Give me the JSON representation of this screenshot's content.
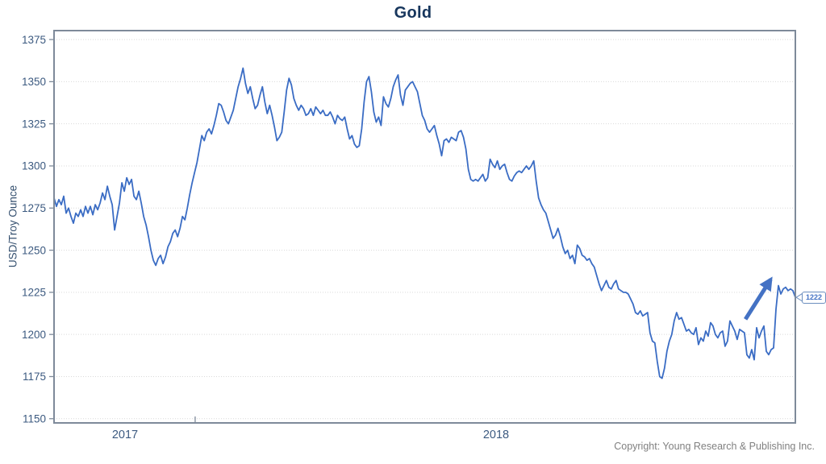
{
  "title": "Gold",
  "footer": {
    "copyright": "Copyright: Young Research & Publishing Inc."
  },
  "y_axis": {
    "label": "USD/Troy Ounce",
    "ticks": [
      1375,
      1350,
      1325,
      1300,
      1275,
      1250,
      1225,
      1200,
      1175,
      1150
    ]
  },
  "x_axis": {
    "labels": [
      {
        "text": "2017",
        "t": 2017.0
      },
      {
        "text": "2018",
        "t": 2018.0
      }
    ],
    "minor_tick_t": 2017.189
  },
  "annotation": {
    "last_price_label": "1222",
    "arrow": {
      "from": {
        "t": 2018.672,
        "price": 1209
      },
      "to": {
        "t": 2018.753,
        "price": 1235
      }
    }
  },
  "colors": {
    "line": "#3A6CC4",
    "arrow": "#4472C4",
    "frame": "#7E8A9A",
    "grid": "#D9D9D9",
    "title": "#17365D",
    "axis_text": "#3C5A80",
    "callout": "#4472C4",
    "copyright": "#808080"
  },
  "chart_data": {
    "type": "line",
    "title": "Gold",
    "series_name": "Gold spot price",
    "ylabel": "USD/Troy Ounce",
    "unit": "USD per troy ounce",
    "grid": "horizontal-dotted",
    "legend": "none",
    "x_start_decimal_year": 2016.8087,
    "x_step_decimal_year": 0.0065288,
    "xlim": [
      2016.8087,
      2018.8065
    ],
    "ylim": [
      1147.5,
      1380.3
    ],
    "last_value": 1222,
    "values": [
      1281,
      1276,
      1280,
      1277,
      1282,
      1272,
      1275,
      1270,
      1266,
      1272,
      1270,
      1274,
      1270,
      1276,
      1272,
      1276,
      1271,
      1277,
      1274,
      1278,
      1284,
      1280,
      1288,
      1282,
      1277,
      1262,
      1270,
      1278,
      1290,
      1285,
      1293,
      1289,
      1292,
      1282,
      1280,
      1285,
      1278,
      1270,
      1265,
      1258,
      1250,
      1244,
      1241,
      1245,
      1247,
      1242,
      1246,
      1252,
      1255,
      1260,
      1262,
      1258,
      1263,
      1270,
      1268,
      1275,
      1283,
      1290,
      1296,
      1302,
      1310,
      1318,
      1315,
      1320,
      1322,
      1319,
      1324,
      1330,
      1337,
      1336,
      1332,
      1327,
      1325,
      1329,
      1333,
      1340,
      1347,
      1352,
      1358,
      1349,
      1343,
      1347,
      1340,
      1334,
      1336,
      1342,
      1347,
      1338,
      1331,
      1336,
      1330,
      1323,
      1315,
      1317,
      1320,
      1332,
      1345,
      1352,
      1348,
      1340,
      1336,
      1333,
      1336,
      1334,
      1330,
      1331,
      1334,
      1330,
      1335,
      1333,
      1331,
      1333,
      1330,
      1330,
      1332,
      1329,
      1325,
      1330,
      1328,
      1327,
      1329,
      1322,
      1316,
      1318,
      1313,
      1311,
      1312,
      1322,
      1338,
      1350,
      1353,
      1344,
      1332,
      1326,
      1329,
      1324,
      1341,
      1337,
      1335,
      1340,
      1347,
      1351,
      1354,
      1342,
      1336,
      1345,
      1347,
      1349,
      1350,
      1347,
      1344,
      1337,
      1330,
      1327,
      1322,
      1320,
      1322,
      1324,
      1318,
      1313,
      1306,
      1315,
      1316,
      1314,
      1317,
      1316,
      1315,
      1320,
      1321,
      1317,
      1310,
      1298,
      1292,
      1291,
      1292,
      1291,
      1293,
      1295,
      1291,
      1293,
      1304,
      1301,
      1299,
      1303,
      1298,
      1300,
      1301,
      1296,
      1292,
      1291,
      1294,
      1296,
      1297,
      1296,
      1298,
      1300,
      1298,
      1300,
      1303,
      1291,
      1281,
      1277,
      1274,
      1272,
      1267,
      1262,
      1257,
      1259,
      1263,
      1258,
      1252,
      1248,
      1250,
      1245,
      1247,
      1242,
      1253,
      1251,
      1247,
      1246,
      1244,
      1245,
      1242,
      1240,
      1235,
      1230,
      1226,
      1229,
      1232,
      1228,
      1227,
      1230,
      1232,
      1227,
      1226,
      1225,
      1225,
      1224,
      1221,
      1218,
      1213,
      1212,
      1214,
      1211,
      1212,
      1213,
      1201,
      1196,
      1195,
      1184,
      1175,
      1174,
      1180,
      1190,
      1196,
      1200,
      1208,
      1213,
      1209,
      1210,
      1206,
      1202,
      1203,
      1201,
      1200,
      1204,
      1194,
      1198,
      1196,
      1202,
      1199,
      1207,
      1205,
      1200,
      1198,
      1201,
      1202,
      1193,
      1196,
      1208,
      1205,
      1202,
      1197,
      1203,
      1202,
      1201,
      1188,
      1186,
      1191,
      1185,
      1204,
      1198,
      1202,
      1205,
      1190,
      1188,
      1191,
      1192,
      1215,
      1229,
      1224,
      1227,
      1228,
      1226,
      1227,
      1226,
      1222
    ]
  }
}
